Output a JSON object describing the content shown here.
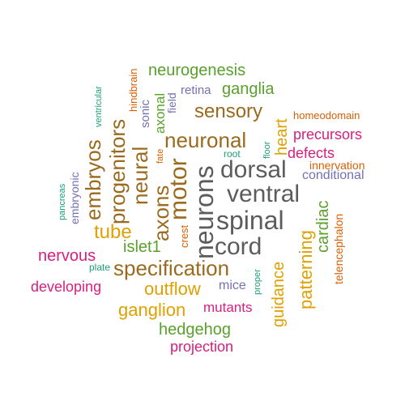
{
  "words": {
    "spinal": "spinal",
    "ventral": "ventral",
    "dorsal": "dorsal",
    "cord": "cord",
    "neurons": "neurons",
    "motor": "motor",
    "axons": "axons",
    "neural": "neural",
    "neuronal": "neuronal",
    "specification": "specification",
    "progenitors": "progenitors",
    "embryos": "embryos",
    "sensory": "sensory",
    "neurogenesis": "neurogenesis",
    "ganglia": "ganglia",
    "heart": "heart",
    "precursors": "precursors",
    "defects": "defects",
    "conditional": "conditional",
    "innervation": "innervation",
    "homeodomain": "homeodomain",
    "telencephalon": "telencephalon",
    "cardiac": "cardiac",
    "patterning": "patterning",
    "guidance": "guidance",
    "mice": "mice",
    "mutants": "mutants",
    "proper": "proper",
    "outflow": "outflow",
    "ganglion": "ganglion",
    "hedgehog": "hedgehog",
    "projection": "projection",
    "tube": "tube",
    "islet1": "islet1",
    "crest": "crest",
    "nervous": "nervous",
    "developing": "developing",
    "plate": "plate",
    "embryonic": "embryonic",
    "pancreas": "pancreas",
    "ventricular": "ventricular",
    "hindbrain": "hindbrain",
    "sonic": "sonic",
    "axonal": "axonal",
    "field": "field",
    "retina": "retina",
    "fate": "fate",
    "root": "root",
    "floor": "floor"
  }
}
